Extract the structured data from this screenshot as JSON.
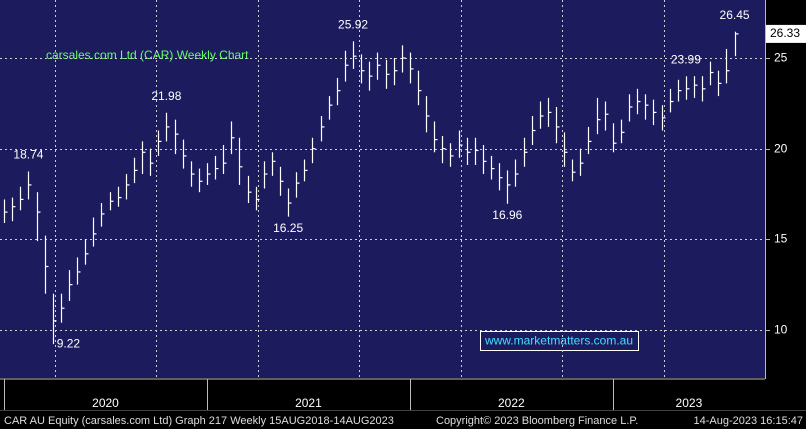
{
  "chart_data": {
    "type": "ohlc",
    "title": "carsales.com Ltd (CAR) Weekly Chart",
    "title_color": "#66ff66",
    "background": "#1c1b5e",
    "color": "#ffffff",
    "grid": true,
    "xlim": [
      2019.98,
      2023.75
    ],
    "ylim": [
      7.35,
      28.2
    ],
    "yticks": [
      10,
      15,
      20,
      25
    ],
    "xgrid": [
      2020.25,
      2020.75,
      2021.25,
      2021.75,
      2022.25,
      2022.75,
      2023.25
    ],
    "xticks": [
      {
        "value": 2020,
        "label": "2020"
      },
      {
        "value": 2021,
        "label": "2021"
      },
      {
        "value": 2022,
        "label": "2022"
      },
      {
        "value": 2023,
        "label": "2023"
      }
    ],
    "x": [
      2020.0,
      2020.04,
      2020.08,
      2020.12,
      2020.16,
      2020.2,
      2020.24,
      2020.28,
      2020.32,
      2020.36,
      2020.4,
      2020.44,
      2020.48,
      2020.52,
      2020.56,
      2020.6,
      2020.64,
      2020.68,
      2020.72,
      2020.76,
      2020.8,
      2020.84,
      2020.88,
      2020.92,
      2020.96,
      2021.0,
      2021.04,
      2021.08,
      2021.12,
      2021.16,
      2021.2,
      2021.24,
      2021.28,
      2021.32,
      2021.36,
      2021.4,
      2021.44,
      2021.48,
      2021.52,
      2021.56,
      2021.6,
      2021.64,
      2021.68,
      2021.72,
      2021.76,
      2021.8,
      2021.84,
      2021.88,
      2021.92,
      2021.96,
      2022.0,
      2022.04,
      2022.08,
      2022.12,
      2022.16,
      2022.2,
      2022.24,
      2022.28,
      2022.32,
      2022.36,
      2022.4,
      2022.44,
      2022.48,
      2022.52,
      2022.56,
      2022.6,
      2022.64,
      2022.68,
      2022.72,
      2022.76,
      2022.8,
      2022.84,
      2022.88,
      2022.92,
      2022.96,
      2023.0,
      2023.04,
      2023.08,
      2023.12,
      2023.16,
      2023.2,
      2023.24,
      2023.28,
      2023.32,
      2023.36,
      2023.4,
      2023.44,
      2023.48,
      2023.52,
      2023.56,
      2023.6
    ],
    "values": [
      16.5,
      16.8,
      17.2,
      18.0,
      16.5,
      13.5,
      10.5,
      11.2,
      12.5,
      13.2,
      14.2,
      15.3,
      16.4,
      17.1,
      17.3,
      18.0,
      18.8,
      19.8,
      19.2,
      20.4,
      21.2,
      20.8,
      19.6,
      18.6,
      18.2,
      18.6,
      18.9,
      19.2,
      20.6,
      19.0,
      17.6,
      17.2,
      18.6,
      19.3,
      18.2,
      17.0,
      18.1,
      18.8,
      20.0,
      21.2,
      22.4,
      23.2,
      24.6,
      25.1,
      24.3,
      24.0,
      24.6,
      24.1,
      24.3,
      25.0,
      24.4,
      23.2,
      21.8,
      20.5,
      20.0,
      19.6,
      20.2,
      19.8,
      19.9,
      19.3,
      18.9,
      18.4,
      18.0,
      18.6,
      19.8,
      21.0,
      21.8,
      22.0,
      21.2,
      19.8,
      18.7,
      19.2,
      20.4,
      21.6,
      21.9,
      20.3,
      20.9,
      22.3,
      22.6,
      22.4,
      22.0,
      21.7,
      22.6,
      23.2,
      23.3,
      23.5,
      23.3,
      24.2,
      23.6,
      24.3,
      26.33
    ],
    "high": [
      17.2,
      17.3,
      17.9,
      18.74,
      17.6,
      15.2,
      12.0,
      12.0,
      13.3,
      14.0,
      15.0,
      16.2,
      17.0,
      17.6,
      17.9,
      18.6,
      19.5,
      20.4,
      20.0,
      21.0,
      21.98,
      21.6,
      20.5,
      19.3,
      18.9,
      19.2,
      19.6,
      20.2,
      21.5,
      20.6,
      18.5,
      17.9,
      19.3,
      19.8,
      19.0,
      17.8,
      18.7,
      19.4,
      20.6,
      21.8,
      22.9,
      23.9,
      25.4,
      25.92,
      25.2,
      24.8,
      25.3,
      24.9,
      25.0,
      25.7,
      25.3,
      24.3,
      22.9,
      21.5,
      20.7,
      20.3,
      21.0,
      20.6,
      20.6,
      20.2,
      19.6,
      19.2,
      18.8,
      19.4,
      20.6,
      21.8,
      22.6,
      22.8,
      22.3,
      20.9,
      19.4,
      20.0,
      21.2,
      22.8,
      22.6,
      21.4,
      21.6,
      23.0,
      23.3,
      23.0,
      22.7,
      22.4,
      23.3,
      23.8,
      23.99,
      24.0,
      24.0,
      24.8,
      24.3,
      25.5,
      26.45
    ],
    "low": [
      15.9,
      16.0,
      16.6,
      17.2,
      14.9,
      12.0,
      9.22,
      10.4,
      11.6,
      12.5,
      13.6,
      14.6,
      15.7,
      16.6,
      16.8,
      17.2,
      18.1,
      18.6,
      18.5,
      19.6,
      20.4,
      19.7,
      18.9,
      17.9,
      17.6,
      18.0,
      18.3,
      18.6,
      19.7,
      18.0,
      17.0,
      16.6,
      17.8,
      18.5,
      17.4,
      16.25,
      17.3,
      18.2,
      19.2,
      20.4,
      21.6,
      22.4,
      23.7,
      24.4,
      23.6,
      23.2,
      23.8,
      23.3,
      23.5,
      24.2,
      23.6,
      22.4,
      20.9,
      19.8,
      19.2,
      19.0,
      19.5,
      19.1,
      19.1,
      18.6,
      18.3,
      17.7,
      16.96,
      17.9,
      19.0,
      20.2,
      21.1,
      21.2,
      20.3,
      19.0,
      18.2,
      18.5,
      19.7,
      20.8,
      21.0,
      19.8,
      20.3,
      21.5,
      21.9,
      21.6,
      21.3,
      21.0,
      22.0,
      22.6,
      22.7,
      22.8,
      22.6,
      23.5,
      22.9,
      23.6,
      25.1
    ],
    "annotations": [
      {
        "x": 2020.12,
        "y": 18.74,
        "position": "above"
      },
      {
        "x": 2020.24,
        "y": 9.22,
        "position": "right"
      },
      {
        "x": 2020.8,
        "y": 21.98,
        "position": "above"
      },
      {
        "x": 2021.4,
        "y": 16.25,
        "position": "below"
      },
      {
        "x": 2021.72,
        "y": 25.92,
        "position": "above"
      },
      {
        "x": 2022.48,
        "y": 16.96,
        "position": "below"
      },
      {
        "x": 2023.36,
        "y": 23.99,
        "position": "above"
      },
      {
        "x": 2023.6,
        "y": 26.45,
        "position": "above"
      }
    ],
    "last_value": 26.33,
    "watermark": "www.marketmatters.com.au",
    "footer": [
      "CAR AU Equity (carsales.com Ltd) Graph 217  Weekly 15AUG2018-14AUG2023",
      "Copyright© 2023 Bloomberg Finance L.P.",
      "14-Aug-2023 16:15:47"
    ]
  }
}
